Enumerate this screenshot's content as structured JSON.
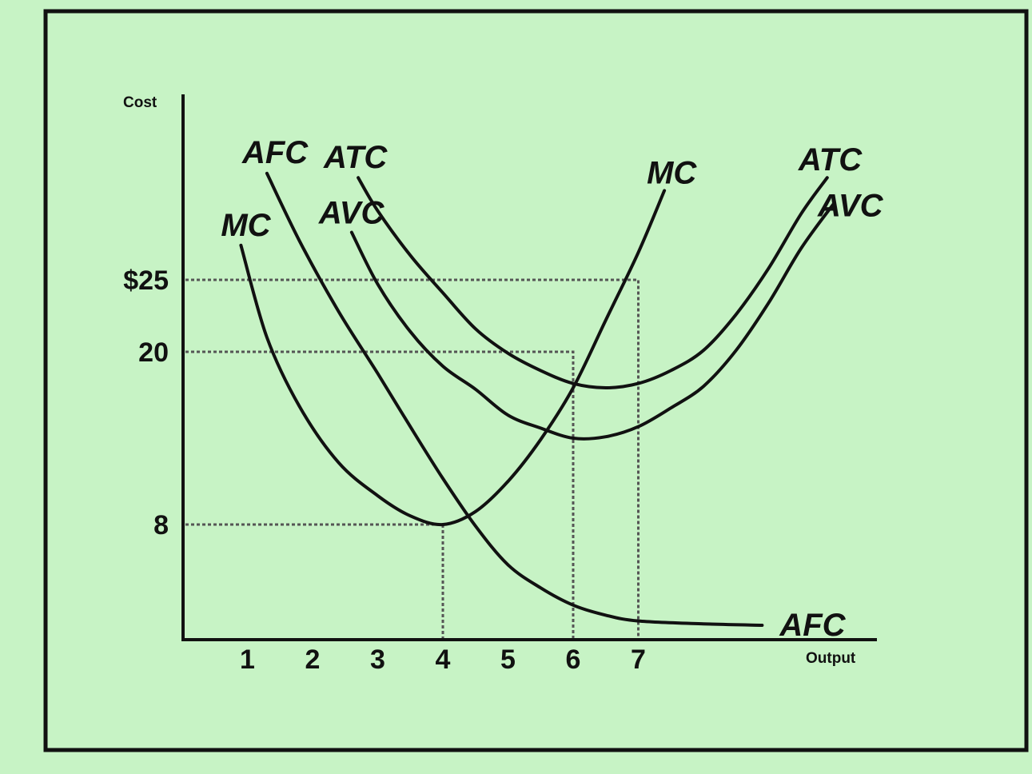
{
  "chart_data": {
    "type": "line",
    "title": "",
    "xlabel": "Output",
    "ylabel": "Cost",
    "x_ticks": [
      "1",
      "2",
      "3",
      "4",
      "5",
      "6",
      "7"
    ],
    "y_ticks": [
      {
        "value": 8,
        "label": "8"
      },
      {
        "value": 20,
        "label": "20"
      },
      {
        "value": 25,
        "label": "$25"
      }
    ],
    "xlim": [
      0,
      10
    ],
    "ylim": [
      0,
      35
    ],
    "grid": false,
    "series": [
      {
        "name": "MC",
        "start_label": "MC",
        "end_label": "MC",
        "points": [
          [
            0.9,
            27.4
          ],
          [
            1.3,
            21.0
          ],
          [
            1.8,
            16.2
          ],
          [
            2.4,
            12.3
          ],
          [
            3.0,
            10.0
          ],
          [
            3.5,
            8.6
          ],
          [
            4.0,
            8.0
          ],
          [
            4.5,
            8.9
          ],
          [
            5.0,
            11.0
          ],
          [
            5.5,
            13.9
          ],
          [
            6.0,
            17.5
          ],
          [
            6.5,
            22.2
          ],
          [
            7.0,
            26.9
          ],
          [
            7.4,
            31.2
          ]
        ]
      },
      {
        "name": "AFC",
        "start_label": "AFC",
        "end_label": "AFC",
        "points": [
          [
            1.3,
            32.4
          ],
          [
            1.8,
            27.7
          ],
          [
            2.4,
            22.8
          ],
          [
            3.0,
            18.5
          ],
          [
            3.5,
            14.8
          ],
          [
            4.0,
            11.2
          ],
          [
            4.5,
            7.9
          ],
          [
            5.0,
            5.2
          ],
          [
            5.5,
            3.6
          ],
          [
            6.0,
            2.4
          ],
          [
            6.5,
            1.7
          ],
          [
            7.0,
            1.3
          ],
          [
            8.0,
            1.1
          ],
          [
            8.9,
            1.0
          ]
        ]
      },
      {
        "name": "AVC",
        "start_label": "AVC",
        "end_label": "AVC",
        "points": [
          [
            2.6,
            28.3
          ],
          [
            3.0,
            24.7
          ],
          [
            3.5,
            21.4
          ],
          [
            4.0,
            19.0
          ],
          [
            4.5,
            17.4
          ],
          [
            5.0,
            15.6
          ],
          [
            5.5,
            14.7
          ],
          [
            6.0,
            14.0
          ],
          [
            6.5,
            14.1
          ],
          [
            7.0,
            14.8
          ],
          [
            7.5,
            16.1
          ],
          [
            8.0,
            17.6
          ],
          [
            8.5,
            20.1
          ],
          [
            9.0,
            23.4
          ],
          [
            9.5,
            27.2
          ],
          [
            10.0,
            30.3
          ]
        ]
      },
      {
        "name": "ATC",
        "start_label": "ATC",
        "end_label": "ATC",
        "points": [
          [
            2.7,
            32.1
          ],
          [
            3.0,
            29.8
          ],
          [
            3.5,
            26.7
          ],
          [
            4.0,
            24.1
          ],
          [
            4.5,
            21.6
          ],
          [
            5.0,
            19.9
          ],
          [
            5.5,
            18.7
          ],
          [
            6.0,
            17.8
          ],
          [
            6.5,
            17.5
          ],
          [
            7.0,
            17.8
          ],
          [
            7.5,
            18.7
          ],
          [
            8.0,
            20.1
          ],
          [
            8.5,
            22.6
          ],
          [
            9.0,
            25.8
          ],
          [
            9.5,
            29.6
          ],
          [
            9.9,
            32.1
          ]
        ]
      }
    ],
    "reference_lines": [
      {
        "x": 4,
        "y": 8
      },
      {
        "x": 6,
        "y": 20
      },
      {
        "x": 7,
        "y": 25
      }
    ]
  }
}
